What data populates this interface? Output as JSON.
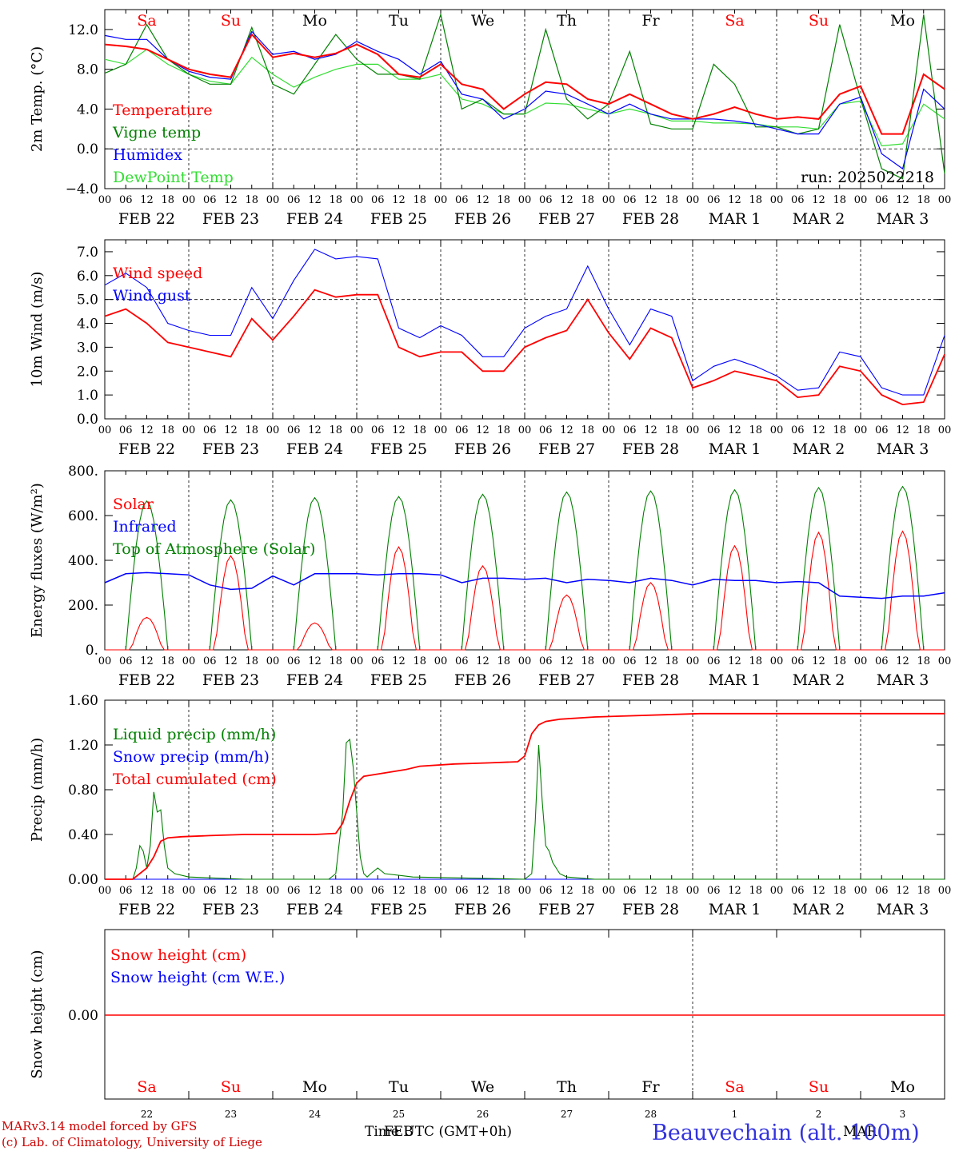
{
  "colors": {
    "red": "#ff0000",
    "green": "#008000",
    "blue": "#0000ff",
    "lightgreen": "#33dd33",
    "darkred": "#cc0000"
  },
  "time_axis": {
    "hour_ticks": [
      "00",
      "06",
      "12",
      "18"
    ],
    "date_labels": [
      "FEB 22",
      "FEB 23",
      "FEB 24",
      "FEB 25",
      "FEB 26",
      "FEB 27",
      "FEB 28",
      "MAR  1",
      "MAR  2",
      "MAR  3"
    ],
    "weekday_labels": [
      "Sa",
      "Su",
      "Mo",
      "Tu",
      "We",
      "Th",
      "Fr",
      "Sa",
      "Su",
      "Mo"
    ],
    "weekday_colors": [
      "red",
      "red",
      "black",
      "black",
      "black",
      "black",
      "black",
      "red",
      "red",
      "black"
    ],
    "day_numbers": [
      "22",
      "23",
      "24",
      "25",
      "26",
      "27",
      "28",
      "1",
      "2",
      "3"
    ]
  },
  "chart_data": [
    {
      "type": "line",
      "ylabel": "2m Temp. (°C)",
      "ylim": [
        -4,
        14
      ],
      "yticks": [
        "12.0",
        "8.0",
        "4.0",
        "0.0",
        "−4.0"
      ],
      "ytick_values": [
        12,
        8,
        4,
        0,
        -4
      ],
      "ref_line": 0,
      "run_label": "run: 2025022218",
      "x_unit": "hours since FEB 22 00 UTC",
      "series": [
        {
          "name": "Temperature",
          "color": "red",
          "x": [
            0,
            6,
            12,
            18,
            24,
            30,
            36,
            42,
            48,
            54,
            60,
            66,
            72,
            78,
            84,
            90,
            96,
            102,
            108,
            114,
            120,
            126,
            132,
            138,
            144,
            150,
            156,
            162,
            168,
            174,
            180,
            186,
            192,
            198,
            204,
            210,
            216,
            222,
            228,
            234,
            240
          ],
          "y": [
            10.5,
            10.3,
            10.0,
            9.0,
            8.0,
            7.5,
            7.2,
            11.5,
            9.2,
            9.6,
            9.2,
            9.6,
            10.5,
            9.5,
            7.5,
            7.2,
            8.5,
            6.5,
            6.0,
            4.0,
            5.5,
            6.7,
            6.5,
            5.0,
            4.5,
            5.5,
            4.5,
            3.5,
            3.0,
            3.5,
            4.2,
            3.5,
            3.0,
            3.2,
            3.0,
            5.5,
            6.3,
            1.5,
            1.5,
            7.5,
            6.0
          ]
        },
        {
          "name": "Vigne temp",
          "color": "green",
          "x": [
            0,
            6,
            12,
            18,
            24,
            30,
            36,
            42,
            48,
            54,
            60,
            66,
            72,
            78,
            84,
            90,
            96,
            102,
            108,
            114,
            120,
            126,
            132,
            138,
            144,
            150,
            156,
            162,
            168,
            174,
            180,
            186,
            192,
            198,
            204,
            210,
            216,
            222,
            228,
            234,
            240
          ],
          "y": [
            7.6,
            8.5,
            12.5,
            9.0,
            7.5,
            6.5,
            6.5,
            12.2,
            6.5,
            5.5,
            8.5,
            11.5,
            9.0,
            7.5,
            7.5,
            7.0,
            13.5,
            4.0,
            5.0,
            3.5,
            3.5,
            12.0,
            5.0,
            3.0,
            4.5,
            9.8,
            2.5,
            2.0,
            2.0,
            8.5,
            6.5,
            2.2,
            2.2,
            1.5,
            2.0,
            12.5,
            5.0,
            -2.0,
            -3.0,
            13.5,
            -2.5
          ]
        },
        {
          "name": "Humidex",
          "color": "blue",
          "x": [
            0,
            6,
            12,
            18,
            24,
            30,
            36,
            42,
            48,
            54,
            60,
            66,
            72,
            78,
            84,
            90,
            96,
            102,
            108,
            114,
            120,
            126,
            132,
            138,
            144,
            150,
            156,
            162,
            168,
            174,
            180,
            186,
            192,
            198,
            204,
            210,
            216,
            222,
            228,
            234,
            240
          ],
          "y": [
            11.4,
            11.0,
            11.0,
            9.0,
            7.8,
            7.2,
            7.0,
            11.8,
            9.5,
            9.8,
            9.0,
            9.5,
            10.8,
            9.8,
            9.0,
            7.5,
            8.8,
            5.5,
            5.0,
            3.0,
            4.0,
            5.8,
            5.5,
            4.5,
            3.5,
            4.5,
            3.5,
            3.0,
            3.0,
            3.0,
            2.8,
            2.5,
            2.0,
            1.5,
            1.5,
            4.5,
            5.2,
            -0.5,
            -2.0,
            6.0,
            4.0
          ]
        },
        {
          "name": "DewPoint Temp",
          "color": "lightgreen",
          "x": [
            0,
            6,
            12,
            18,
            24,
            30,
            36,
            42,
            48,
            54,
            60,
            66,
            72,
            78,
            84,
            90,
            96,
            102,
            108,
            114,
            120,
            126,
            132,
            138,
            144,
            150,
            156,
            162,
            168,
            174,
            180,
            186,
            192,
            198,
            204,
            210,
            216,
            222,
            228,
            234,
            240
          ],
          "y": [
            9.0,
            8.5,
            10.0,
            8.5,
            7.5,
            6.8,
            6.5,
            9.2,
            7.5,
            6.2,
            7.2,
            8.0,
            8.5,
            8.5,
            7.0,
            7.0,
            7.5,
            5.0,
            4.5,
            3.5,
            3.5,
            4.6,
            4.5,
            4.0,
            3.5,
            4.0,
            3.5,
            2.8,
            2.8,
            2.6,
            2.6,
            2.5,
            2.2,
            2.2,
            2.0,
            4.5,
            4.8,
            0.3,
            0.5,
            4.5,
            3.0
          ]
        }
      ]
    },
    {
      "type": "line",
      "ylabel": "10m Wind (m/s)",
      "ylim": [
        0,
        7.5
      ],
      "yticks": [
        "7.0",
        "6.0",
        "5.0",
        "4.0",
        "3.0",
        "2.0",
        "1.0",
        "0.0"
      ],
      "ytick_values": [
        7,
        6,
        5,
        4,
        3,
        2,
        1,
        0
      ],
      "ref_line": 5,
      "x_unit": "hours since FEB 22 00 UTC",
      "series": [
        {
          "name": "Wind speed",
          "color": "red",
          "x": [
            0,
            6,
            12,
            18,
            24,
            30,
            36,
            42,
            48,
            54,
            60,
            66,
            72,
            78,
            84,
            90,
            96,
            102,
            108,
            114,
            120,
            126,
            132,
            138,
            144,
            150,
            156,
            162,
            168,
            174,
            180,
            186,
            192,
            198,
            204,
            210,
            216,
            222,
            228,
            234,
            240
          ],
          "y": [
            4.3,
            4.6,
            4.0,
            3.2,
            3.0,
            2.8,
            2.6,
            4.2,
            3.3,
            4.3,
            5.4,
            5.1,
            5.2,
            5.2,
            3.0,
            2.6,
            2.8,
            2.8,
            2.0,
            2.0,
            3.0,
            3.4,
            3.7,
            5.0,
            3.6,
            2.5,
            3.8,
            3.4,
            1.3,
            1.6,
            2.0,
            1.8,
            1.6,
            0.9,
            1.0,
            2.2,
            2.0,
            1.0,
            0.6,
            0.7,
            2.7
          ]
        },
        {
          "name": "Wind gust",
          "color": "blue",
          "x": [
            0,
            6,
            12,
            18,
            24,
            30,
            36,
            42,
            48,
            54,
            60,
            66,
            72,
            78,
            84,
            90,
            96,
            102,
            108,
            114,
            120,
            126,
            132,
            138,
            144,
            150,
            156,
            162,
            168,
            174,
            180,
            186,
            192,
            198,
            204,
            210,
            216,
            222,
            228,
            234,
            240
          ],
          "y": [
            5.6,
            6.1,
            5.5,
            4.0,
            3.7,
            3.5,
            3.5,
            5.5,
            4.2,
            5.8,
            7.1,
            6.7,
            6.8,
            6.7,
            3.8,
            3.4,
            3.9,
            3.5,
            2.6,
            2.6,
            3.8,
            4.3,
            4.6,
            6.4,
            4.6,
            3.1,
            4.6,
            4.3,
            1.6,
            2.2,
            2.5,
            2.2,
            1.8,
            1.2,
            1.3,
            2.8,
            2.6,
            1.3,
            1.0,
            1.0,
            3.5
          ]
        }
      ]
    },
    {
      "type": "line",
      "ylabel": "Energy fluxes (W/m²)",
      "ylim": [
        0,
        800
      ],
      "yticks": [
        "800.",
        "600.",
        "400.",
        "200.",
        "0."
      ],
      "ytick_values": [
        800,
        600,
        400,
        200,
        0
      ],
      "x_unit": "hours since FEB 22 00 UTC",
      "series": [
        {
          "name": "Solar",
          "color": "red",
          "day_peaks": [
            145,
            420,
            120,
            460,
            375,
            245,
            300,
            465,
            525,
            530
          ]
        },
        {
          "name": "Infrared",
          "color": "blue",
          "x": [
            0,
            6,
            12,
            18,
            24,
            30,
            36,
            42,
            48,
            54,
            60,
            66,
            72,
            78,
            84,
            90,
            96,
            102,
            108,
            114,
            120,
            126,
            132,
            138,
            144,
            150,
            156,
            162,
            168,
            174,
            180,
            186,
            192,
            198,
            204,
            210,
            216,
            222,
            228,
            234,
            240
          ],
          "y": [
            300,
            340,
            345,
            340,
            335,
            290,
            270,
            275,
            330,
            290,
            340,
            340,
            340,
            335,
            340,
            340,
            335,
            300,
            320,
            320,
            315,
            320,
            300,
            315,
            310,
            300,
            320,
            310,
            290,
            315,
            310,
            310,
            300,
            305,
            300,
            240,
            235,
            230,
            240,
            240,
            255
          ]
        },
        {
          "name": "Top of Atmosphere (Solar)",
          "color": "green",
          "day_peaks": [
            665,
            670,
            680,
            685,
            695,
            705,
            710,
            715,
            725,
            730
          ]
        }
      ]
    },
    {
      "type": "line",
      "ylabel": "Precip (mm/h)",
      "ylim": [
        0,
        1.6
      ],
      "yticks": [
        "1.60",
        "1.20",
        "0.80",
        "0.40",
        "0.00"
      ],
      "ytick_values": [
        1.6,
        1.2,
        0.8,
        0.4,
        0
      ],
      "x_unit": "hours since FEB 22 00 UTC",
      "series": [
        {
          "name": "Liquid precip (mm/h)",
          "color": "green",
          "x": [
            0,
            8,
            9,
            10,
            11,
            12,
            13,
            14,
            15,
            16,
            17,
            18,
            20,
            24,
            40,
            64,
            66,
            68,
            69,
            70,
            71,
            72,
            73,
            74,
            75,
            76,
            78,
            80,
            88,
            120,
            122,
            123,
            124,
            125,
            126,
            127,
            128,
            130,
            132,
            140,
            240
          ],
          "y": [
            0,
            0,
            0.1,
            0.3,
            0.25,
            0.1,
            0.3,
            0.78,
            0.6,
            0.62,
            0.3,
            0.1,
            0.05,
            0.02,
            0,
            0,
            0.05,
            0.6,
            1.22,
            1.25,
            1.0,
            0.6,
            0.2,
            0.05,
            0.02,
            0.05,
            0.1,
            0.05,
            0.02,
            0,
            0.05,
            0.5,
            1.2,
            0.7,
            0.3,
            0.25,
            0.15,
            0.05,
            0.02,
            0,
            0
          ]
        },
        {
          "name": "Snow precip (mm/h)",
          "color": "blue",
          "x": [
            0,
            240
          ],
          "y": [
            0,
            0
          ]
        },
        {
          "name": "Total cumulated (cm)",
          "color": "red",
          "x": [
            0,
            8,
            12,
            14,
            16,
            18,
            22,
            30,
            40,
            60,
            66,
            68,
            70,
            72,
            74,
            80,
            86,
            90,
            100,
            110,
            118,
            120,
            122,
            124,
            126,
            130,
            140,
            160,
            170,
            180,
            200,
            220,
            240
          ],
          "y": [
            0,
            0,
            0.1,
            0.2,
            0.34,
            0.37,
            0.38,
            0.39,
            0.4,
            0.4,
            0.41,
            0.5,
            0.7,
            0.86,
            0.92,
            0.95,
            0.98,
            1.01,
            1.03,
            1.04,
            1.05,
            1.1,
            1.3,
            1.38,
            1.41,
            1.43,
            1.45,
            1.47,
            1.48,
            1.48,
            1.48,
            1.48,
            1.48
          ]
        }
      ]
    },
    {
      "type": "line",
      "ylabel": "Snow height (cm)",
      "yticks": [
        "0.00"
      ],
      "ytick_values": [
        0
      ],
      "x_unit": "hours since FEB 22 00 UTC",
      "series": [
        {
          "name": "Snow height (cm)",
          "color": "red",
          "x": [
            0,
            240
          ],
          "y": [
            0,
            0
          ]
        },
        {
          "name": "Snow height (cm W.E.)",
          "color": "blue",
          "x": [
            0,
            240
          ],
          "y": [
            0,
            0
          ]
        }
      ]
    }
  ],
  "footer": {
    "line1": "MARv3.14 model forced by GFS",
    "line2": "(c) Lab. of Climatology, University of Liege",
    "time_label": "Time UTC (GMT+0h)",
    "month_feb": "FEB",
    "month_mar": "MAR",
    "station": "Beauvechain (alt. 100m)"
  }
}
